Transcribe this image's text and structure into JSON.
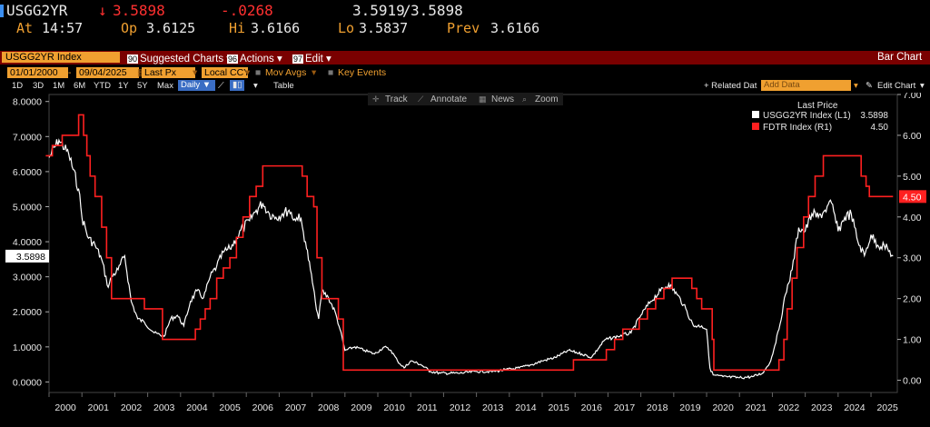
{
  "header": {
    "ticker": "USGG2YR",
    "price": "3.5898",
    "change": "-.0268",
    "bid": "3.5919",
    "ask": "3.5898",
    "at_label": "At",
    "time": "14:57",
    "open_label": "Op",
    "open": "3.6125",
    "hi_label": "Hi",
    "hi": "3.6166",
    "lo_label": "Lo",
    "lo": "3.5837",
    "prev_label": "Prev",
    "prev": "3.6166"
  },
  "toolbar": {
    "security": "USGG2YR Index",
    "suggested_num": "90",
    "suggested_label": "Suggested Charts",
    "actions_num": "96",
    "actions_label": "Actions",
    "edit_num": "97",
    "edit_label": "Edit",
    "chart_type": "Bar Chart"
  },
  "range_bar": {
    "start_date": "01/01/2000",
    "end_date": "09/04/2025",
    "field": "Last Px",
    "currency": "Local CCY",
    "mov_avgs": "Mov Avgs",
    "key_events": "Key Events"
  },
  "period_bar": {
    "periods": [
      "1D",
      "3D",
      "1M",
      "6M",
      "YTD",
      "1Y",
      "5Y",
      "Max"
    ],
    "frequency": "Daily",
    "table": "Table",
    "related": "+ Related Dat",
    "add_data": "Add Data",
    "edit_chart": "Edit Chart"
  },
  "chart_tools": [
    "Track",
    "Annotate",
    "News",
    "Zoom"
  ],
  "legend": {
    "title": "Last Price",
    "items": [
      {
        "name": "USGG2YR Index",
        "axis": "(L1)",
        "value": "3.5898",
        "color": "#ffffff"
      },
      {
        "name": "FDTR Index",
        "axis": "(R1)",
        "value": "4.50",
        "color": "#ff2020"
      }
    ]
  },
  "chart_data": {
    "type": "line",
    "x_labels": [
      "2000",
      "2001",
      "2002",
      "2003",
      "2004",
      "2005",
      "2006",
      "2007",
      "2008",
      "2009",
      "2010",
      "2011",
      "2012",
      "2013",
      "2014",
      "2015",
      "2016",
      "2017",
      "2018",
      "2019",
      "2020",
      "2021",
      "2022",
      "2023",
      "2024",
      "2025"
    ],
    "left_axis": {
      "ticks": [
        "8.0000",
        "7.0000",
        "6.0000",
        "5.0000",
        "4.0000",
        "3.0000",
        "2.0000",
        "1.0000",
        "0.0000"
      ],
      "ylim": [
        -0.3,
        8.2
      ],
      "current_label": "3.5898",
      "current_value": 3.5898
    },
    "right_axis": {
      "ticks": [
        "7.00",
        "6.00",
        "5.00",
        "4.00",
        "3.00",
        "2.00",
        "1.00",
        "0.00"
      ],
      "ylim": [
        -0.3,
        7.0
      ],
      "current_label": "4.50",
      "current_value": 4.5
    },
    "series": [
      {
        "name": "USGG2YR Index",
        "color": "#ffffff",
        "axis": "left",
        "x": [
          2000.0,
          2000.3,
          2000.6,
          2000.9,
          2001.0,
          2001.2,
          2001.4,
          2001.6,
          2001.8,
          2001.9,
          2002.1,
          2002.3,
          2002.5,
          2002.7,
          2002.9,
          2003.2,
          2003.5,
          2003.7,
          2003.9,
          2004.1,
          2004.3,
          2004.5,
          2004.7,
          2004.9,
          2005.1,
          2005.3,
          2005.5,
          2005.7,
          2005.9,
          2006.1,
          2006.3,
          2006.5,
          2006.7,
          2006.9,
          2007.1,
          2007.3,
          2007.5,
          2007.6,
          2007.8,
          2007.95,
          2008.1,
          2008.2,
          2008.3,
          2008.5,
          2008.7,
          2008.85,
          2009.0,
          2009.3,
          2009.6,
          2009.9,
          2010.2,
          2010.4,
          2010.6,
          2010.8,
          2011.0,
          2011.3,
          2011.6,
          2011.9,
          2012.5,
          2013.0,
          2013.5,
          2013.9,
          2014.3,
          2014.7,
          2015.0,
          2015.4,
          2015.8,
          2016.2,
          2016.5,
          2016.9,
          2017.3,
          2017.7,
          2018.0,
          2018.3,
          2018.6,
          2018.85,
          2019.1,
          2019.3,
          2019.6,
          2019.85,
          2020.0,
          2020.1,
          2020.2,
          2020.5,
          2021.0,
          2021.4,
          2021.7,
          2021.95,
          2022.2,
          2022.4,
          2022.6,
          2022.8,
          2023.0,
          2023.2,
          2023.4,
          2023.6,
          2023.8,
          2024.0,
          2024.2,
          2024.4,
          2024.6,
          2024.8,
          2025.0,
          2025.2,
          2025.4,
          2025.67
        ],
        "y": [
          6.4,
          6.9,
          6.5,
          5.5,
          4.7,
          4.1,
          3.9,
          3.5,
          2.7,
          3.0,
          3.2,
          3.6,
          2.3,
          1.8,
          1.7,
          1.4,
          1.3,
          1.8,
          1.9,
          1.6,
          2.3,
          2.6,
          2.4,
          3.0,
          3.3,
          3.7,
          3.8,
          4.1,
          4.4,
          4.6,
          4.9,
          5.1,
          4.8,
          4.7,
          4.8,
          4.9,
          4.6,
          4.8,
          4.0,
          3.2,
          2.3,
          1.8,
          2.6,
          2.4,
          2.0,
          1.5,
          0.9,
          1.0,
          0.9,
          0.8,
          1.0,
          0.9,
          0.6,
          0.4,
          0.6,
          0.5,
          0.3,
          0.25,
          0.25,
          0.3,
          0.3,
          0.35,
          0.4,
          0.5,
          0.6,
          0.7,
          0.9,
          0.8,
          0.7,
          1.2,
          1.3,
          1.4,
          1.9,
          2.3,
          2.6,
          2.8,
          2.5,
          2.2,
          1.6,
          1.6,
          1.5,
          0.4,
          0.2,
          0.15,
          0.12,
          0.15,
          0.25,
          0.6,
          1.5,
          2.5,
          3.2,
          4.4,
          4.3,
          4.8,
          4.7,
          4.9,
          5.1,
          4.3,
          4.7,
          4.8,
          4.0,
          3.6,
          4.2,
          3.9,
          3.9,
          3.59
        ]
      },
      {
        "name": "FDTR Index",
        "color": "#ff2020",
        "axis": "right",
        "x": [
          1999.9,
          2000.1,
          2000.4,
          2000.9,
          2001.05,
          2001.15,
          2001.25,
          2001.4,
          2001.6,
          2001.75,
          2001.9,
          2002.9,
          2003.45,
          2004.45,
          2004.6,
          2004.75,
          2004.9,
          2005.1,
          2005.3,
          2005.5,
          2005.7,
          2005.9,
          2006.1,
          2006.3,
          2006.5,
          2007.7,
          2007.85,
          2008.05,
          2008.15,
          2008.3,
          2008.8,
          2008.95,
          2015.95,
          2016.95,
          2017.2,
          2017.45,
          2017.95,
          2018.2,
          2018.45,
          2018.7,
          2018.95,
          2019.55,
          2019.7,
          2019.85,
          2020.17,
          2020.22,
          2022.2,
          2022.35,
          2022.45,
          2022.6,
          2022.75,
          2022.95,
          2023.1,
          2023.3,
          2023.55,
          2024.7,
          2024.85,
          2024.95,
          2025.67
        ],
        "y": [
          5.5,
          5.75,
          6.0,
          6.5,
          6.0,
          5.5,
          5.0,
          4.5,
          3.75,
          3.0,
          2.0,
          1.75,
          1.0,
          1.25,
          1.5,
          1.75,
          2.0,
          2.5,
          2.75,
          3.0,
          3.5,
          4.0,
          4.5,
          4.75,
          5.25,
          5.0,
          4.5,
          4.25,
          3.0,
          2.0,
          1.5,
          0.25,
          0.5,
          0.75,
          1.0,
          1.25,
          1.5,
          1.75,
          2.0,
          2.25,
          2.5,
          2.25,
          2.0,
          1.75,
          1.0,
          0.25,
          0.5,
          1.0,
          1.75,
          2.5,
          3.25,
          4.0,
          4.5,
          5.0,
          5.5,
          5.0,
          4.75,
          4.5,
          4.5
        ]
      }
    ]
  }
}
